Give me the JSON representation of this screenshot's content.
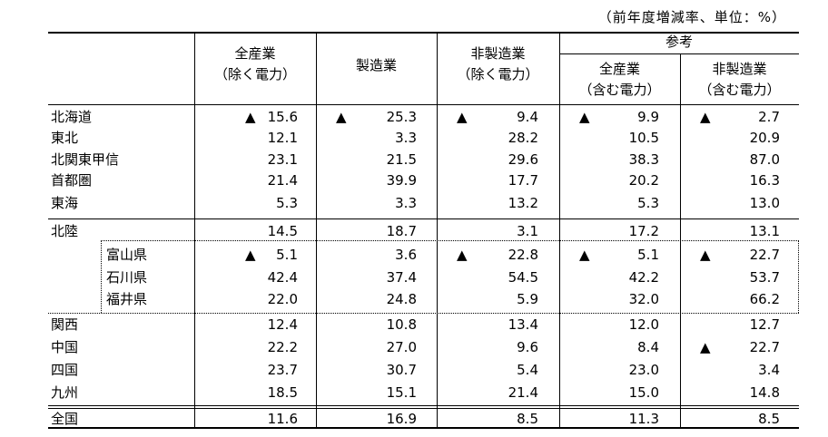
{
  "unit_note": "（前年度増減率、単位：%）",
  "headers": {
    "col1": [
      "全産業",
      "（除く電力）"
    ],
    "col2": [
      "製造業"
    ],
    "col3": [
      "非製造業",
      "（除く電力）"
    ],
    "ref_group": "参考",
    "col4": [
      "全産業",
      "（含む電力）"
    ],
    "col5": [
      "非製造業",
      "（含む電力）"
    ]
  },
  "neg_marker": "▲",
  "rows": [
    {
      "label": "北海道",
      "values": [
        "15.6",
        "25.3",
        "9.4",
        "9.9",
        "2.7"
      ],
      "neg": [
        true,
        true,
        true,
        true,
        true
      ],
      "indent": false
    },
    {
      "label": "東北",
      "values": [
        "12.1",
        "3.3",
        "28.2",
        "10.5",
        "20.9"
      ],
      "neg": [
        false,
        false,
        false,
        false,
        false
      ],
      "indent": false
    },
    {
      "label": "北関東甲信",
      "values": [
        "23.1",
        "21.5",
        "29.6",
        "38.3",
        "87.0"
      ],
      "neg": [
        false,
        false,
        false,
        false,
        false
      ],
      "indent": false
    },
    {
      "label": "首都圏",
      "values": [
        "21.4",
        "39.9",
        "17.7",
        "20.2",
        "16.3"
      ],
      "neg": [
        false,
        false,
        false,
        false,
        false
      ],
      "indent": false
    },
    {
      "label": "東海",
      "values": [
        "5.3",
        "3.3",
        "13.2",
        "5.3",
        "13.0"
      ],
      "neg": [
        false,
        false,
        false,
        false,
        false
      ],
      "indent": false
    },
    {
      "label": "北陸",
      "values": [
        "14.5",
        "18.7",
        "3.1",
        "17.2",
        "13.1"
      ],
      "neg": [
        false,
        false,
        false,
        false,
        false
      ],
      "indent": false
    },
    {
      "label": "富山県",
      "values": [
        "5.1",
        "3.6",
        "22.8",
        "5.1",
        "22.7"
      ],
      "neg": [
        true,
        false,
        true,
        true,
        true
      ],
      "indent": true
    },
    {
      "label": "石川県",
      "values": [
        "42.4",
        "37.4",
        "54.5",
        "42.2",
        "53.7"
      ],
      "neg": [
        false,
        false,
        false,
        false,
        false
      ],
      "indent": true
    },
    {
      "label": "福井県",
      "values": [
        "22.0",
        "24.8",
        "5.9",
        "32.0",
        "66.2"
      ],
      "neg": [
        false,
        false,
        false,
        false,
        false
      ],
      "indent": true
    },
    {
      "label": "関西",
      "values": [
        "12.4",
        "10.8",
        "13.4",
        "12.0",
        "12.7"
      ],
      "neg": [
        false,
        false,
        false,
        false,
        false
      ],
      "indent": false
    },
    {
      "label": "中国",
      "values": [
        "22.2",
        "27.0",
        "9.6",
        "8.4",
        "22.7"
      ],
      "neg": [
        false,
        false,
        false,
        false,
        true
      ],
      "indent": false
    },
    {
      "label": "四国",
      "values": [
        "23.7",
        "30.7",
        "5.4",
        "23.0",
        "3.4"
      ],
      "neg": [
        false,
        false,
        false,
        false,
        false
      ],
      "indent": false
    },
    {
      "label": "九州",
      "values": [
        "18.5",
        "15.1",
        "21.4",
        "15.0",
        "14.8"
      ],
      "neg": [
        false,
        false,
        false,
        false,
        false
      ],
      "indent": false
    },
    {
      "label": "全国",
      "values": [
        "11.6",
        "16.9",
        "8.5",
        "11.3",
        "8.5"
      ],
      "neg": [
        false,
        false,
        false,
        false,
        false
      ],
      "indent": false
    }
  ]
}
